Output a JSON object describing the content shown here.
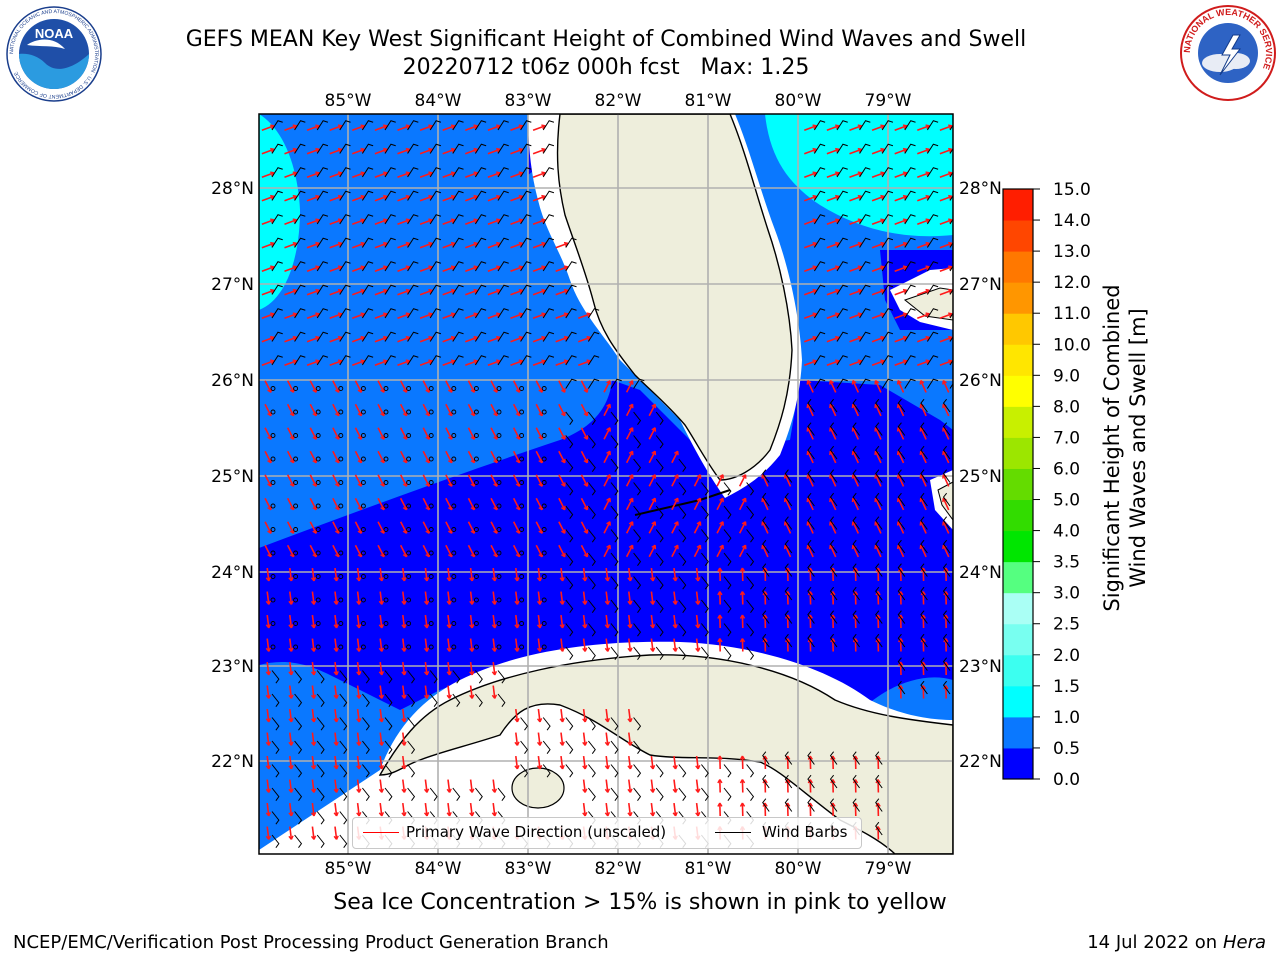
{
  "title": {
    "line1": "GEFS MEAN Key West Significant Height of Combined Wind Waves and Swell",
    "line2": "20220712 t06z 000h fcst   Max: 1.25"
  },
  "axes": {
    "lon_labels": [
      "85°W",
      "84°W",
      "83°W",
      "82°W",
      "81°W",
      "80°W",
      "79°W"
    ],
    "lat_labels": [
      "28°N",
      "27°N",
      "26°N",
      "25°N",
      "24°N",
      "23°N",
      "22°N"
    ]
  },
  "legend": {
    "wave_label": "Primary Wave Direction (unscaled)",
    "wind_label": "Wind Barbs",
    "wave_color": "#ff0000",
    "wind_color": "#000000"
  },
  "colorbar": {
    "title_line1": "Significant Height of Combined",
    "title_line2": "Wind Waves and Swell [m]",
    "ticks": [
      "0.0",
      "0.5",
      "1.0",
      "1.5",
      "2.0",
      "2.5",
      "3.0",
      "3.5",
      "4.0",
      "5.0",
      "6.0",
      "7.0",
      "8.0",
      "9.0",
      "10.0",
      "11.0",
      "12.0",
      "13.0",
      "14.0",
      "15.0"
    ],
    "colors": [
      "#0000ff",
      "#0a78ff",
      "#00ffff",
      "#3cfff0",
      "#78fff0",
      "#aafff5",
      "#55ff80",
      "#00e600",
      "#32dc00",
      "#64dc00",
      "#9ce600",
      "#c8f000",
      "#ffff00",
      "#ffe600",
      "#ffc800",
      "#ff9600",
      "#ff7800",
      "#ff4600",
      "#ff1e00"
    ]
  },
  "map": {
    "ocean_level_colors": {
      "0.0-0.5": "#0000ff",
      "0.5-1.0": "#0a78ff",
      "1.0-1.5": "#00ffff"
    },
    "land_color": "#eeeedc"
  },
  "logos": {
    "noaa_text": "NOAA",
    "noaa_ring_text": "NATIONAL OCEANIC AND ATMOSPHERIC ADMINISTRATION · U.S. DEPARTMENT OF COMMERCE",
    "nws_ring_text": "NATIONAL WEATHER SERVICE"
  },
  "footer": {
    "note": "Sea Ice Concentration > 15% is shown in pink to yellow",
    "left": "NCEP/EMC/Verification Post Processing Product Generation Branch",
    "right_prefix": "14 Jul 2022 on ",
    "right_host": "Hera"
  }
}
